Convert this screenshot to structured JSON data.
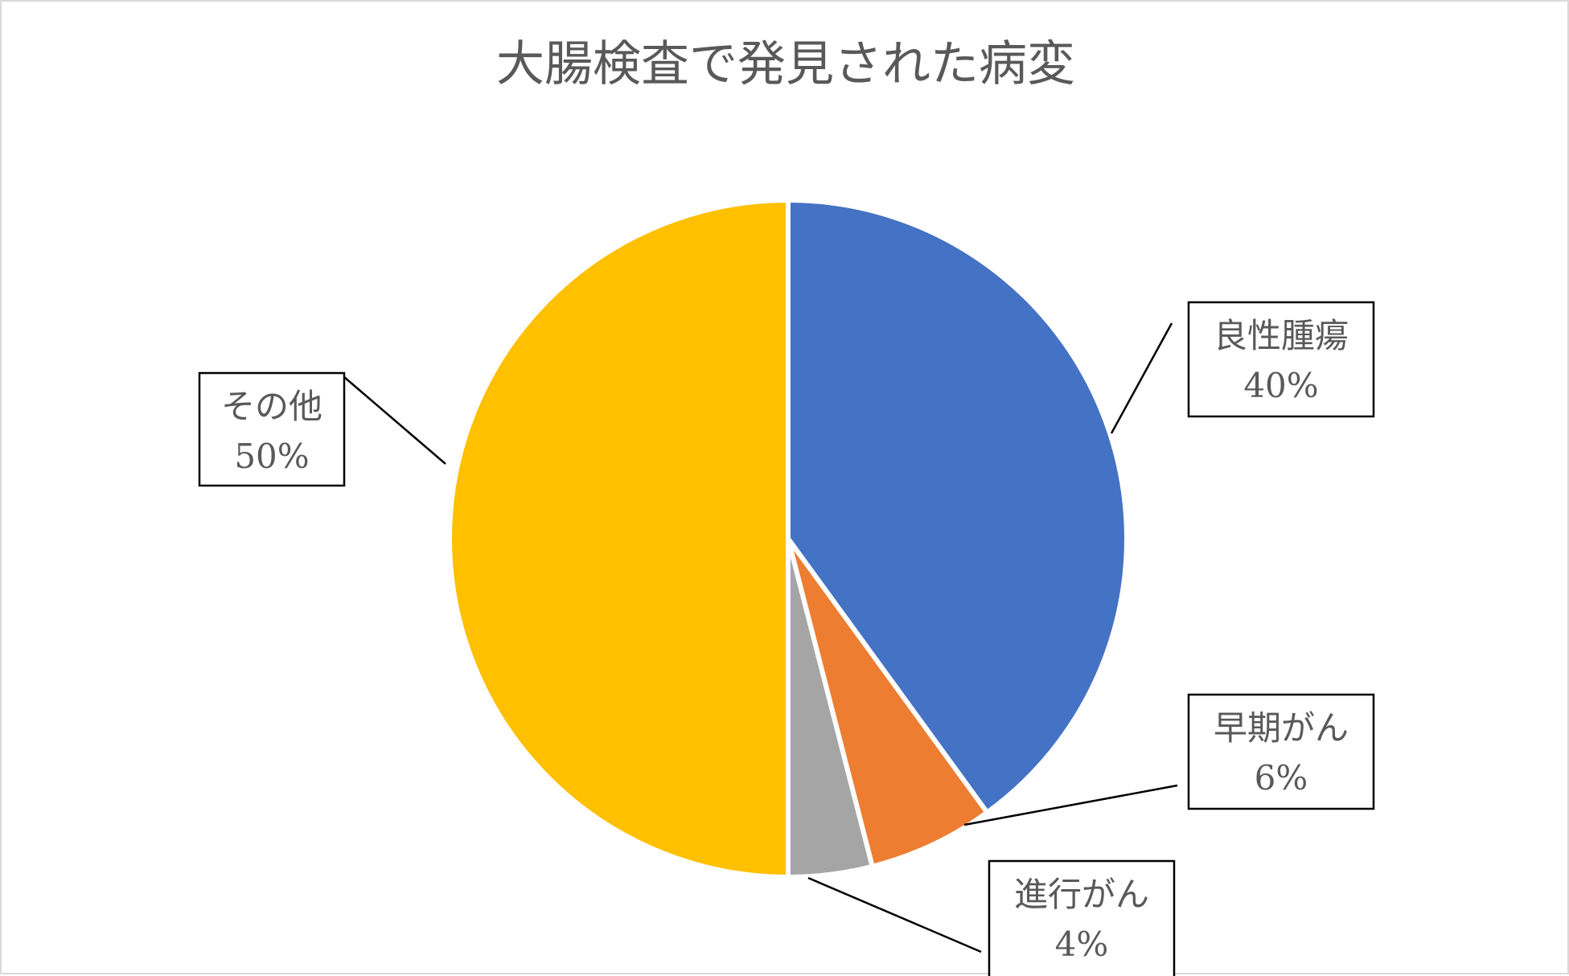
{
  "chart_data": {
    "type": "pie",
    "title": "大腸検査で発見された病変",
    "slices": [
      {
        "label": "良性腫瘍",
        "value": 40,
        "value_label": "40%",
        "color": "#4472C4"
      },
      {
        "label": "早期がん",
        "value": 6,
        "value_label": "6%",
        "color": "#ED7D31"
      },
      {
        "label": "進行がん",
        "value": 4,
        "value_label": "4%",
        "color": "#A5A5A5"
      },
      {
        "label": "その他",
        "value": 50,
        "value_label": "50%",
        "color": "#FFC000"
      }
    ],
    "start_angle_deg": 0,
    "direction": "clockwise",
    "legend": "none",
    "data_labels": "callout"
  }
}
